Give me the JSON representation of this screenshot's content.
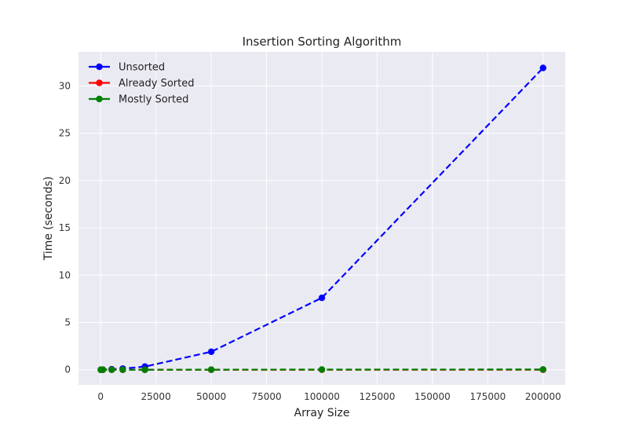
{
  "chart_data": {
    "type": "line",
    "title": "Insertion Sorting Algorithm",
    "xlabel": "Array Size",
    "ylabel": "Time (seconds)",
    "xlim": [
      -10000,
      210000
    ],
    "ylim": [
      -1.6,
      33.6
    ],
    "xticks": [
      0,
      25000,
      50000,
      75000,
      100000,
      125000,
      150000,
      175000,
      200000
    ],
    "yticks": [
      0,
      5,
      10,
      15,
      20,
      25,
      30
    ],
    "grid": true,
    "legend_position": "top-left",
    "line_style": "dashed",
    "marker": "circle",
    "x": [
      100,
      1000,
      5000,
      10000,
      20000,
      50000,
      100000,
      200000
    ],
    "series": [
      {
        "name": "Unsorted",
        "color": "#0000ff",
        "values": [
          0.0,
          0.008,
          0.05,
          0.12,
          0.33,
          1.9,
          7.6,
          31.9
        ]
      },
      {
        "name": "Already Sorted",
        "color": "#ff0000",
        "values": [
          0.0,
          0.0,
          0.0,
          0.0,
          0.0,
          0.0,
          0.0,
          0.0
        ]
      },
      {
        "name": "Mostly Sorted",
        "color": "#008000",
        "values": [
          0.0,
          0.0,
          0.0,
          0.0,
          0.0,
          0.01,
          0.02,
          0.03
        ]
      }
    ],
    "style": {
      "plot_background": "#eaeaf2",
      "grid_color": "#ffffff"
    }
  }
}
